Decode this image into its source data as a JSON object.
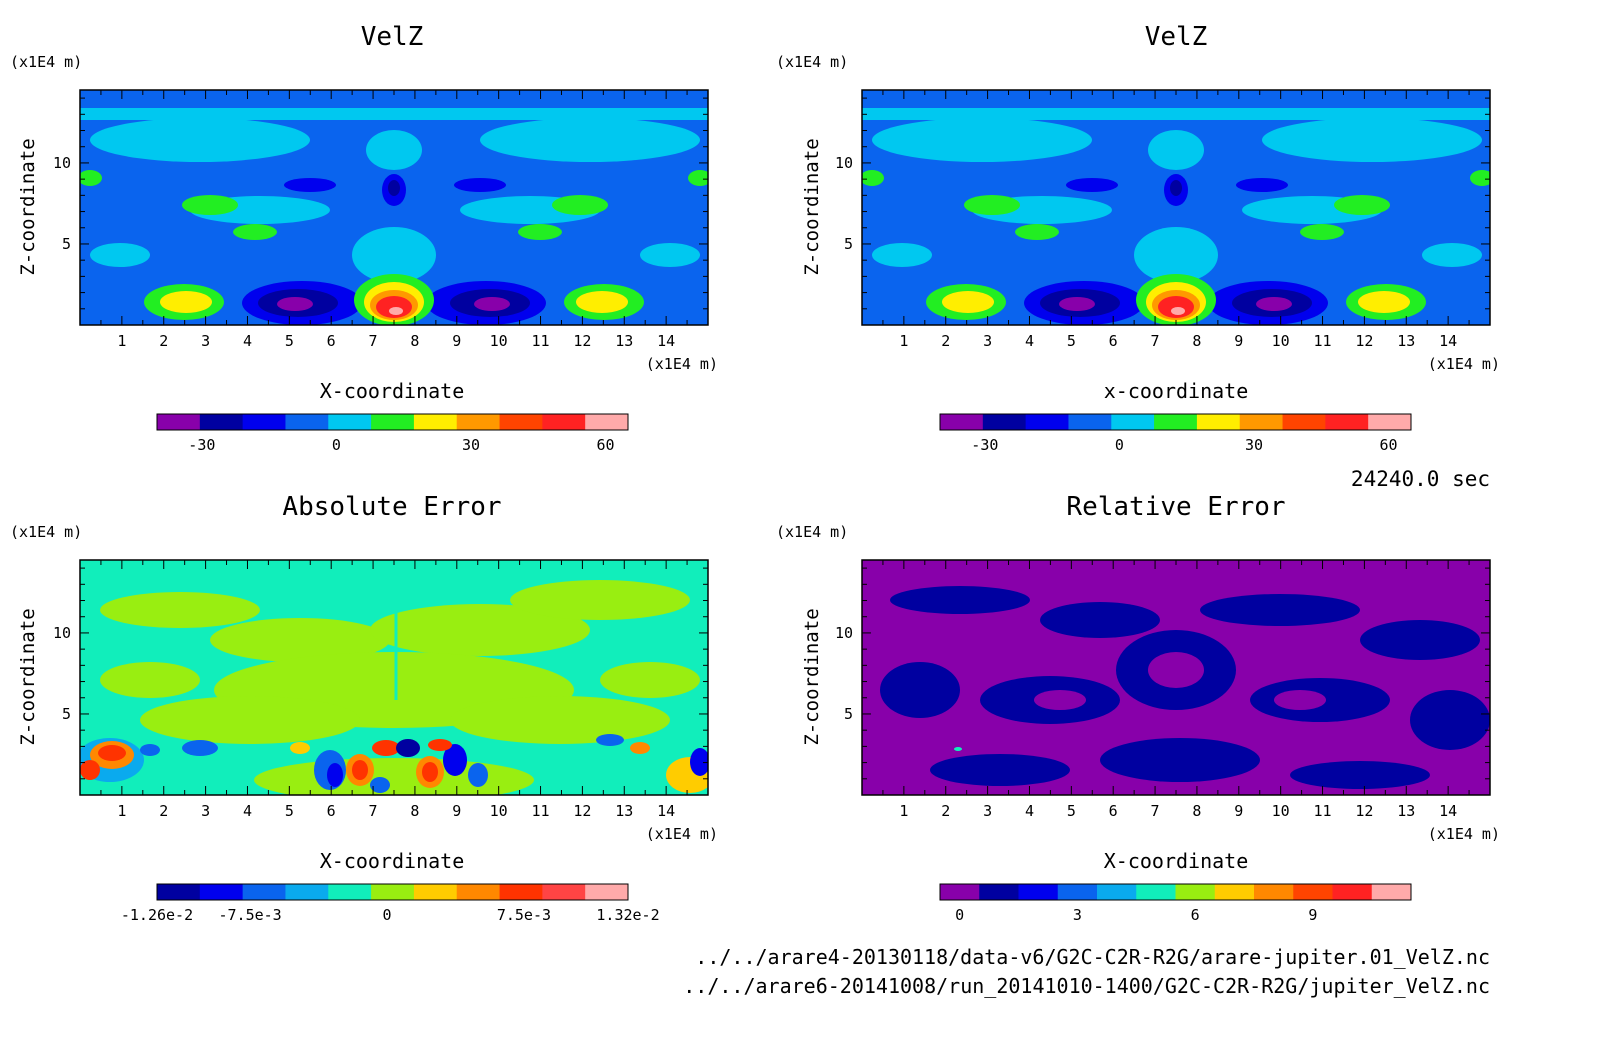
{
  "footer": {
    "time": "24240.0 sec",
    "file1": "../../arare4-20130118/data-v6/G2C-C2R-R2G/arare-jupiter.01_VelZ.nc",
    "file2": "../../arare6-20141008/run_20141010-1400/G2C-C2R-R2G/jupiter_VelZ.nc"
  },
  "chart_data": [
    {
      "id": "p1",
      "type": "heatmap",
      "title": "VelZ",
      "xlabel": "X-coordinate",
      "ylabel": "Z-coordinate",
      "x_unit": "(x1E4 m)",
      "y_unit": "(x1E4 m)",
      "xlim": [
        0,
        15
      ],
      "ylim": [
        0,
        14.5
      ],
      "xticks": [
        "1",
        "2",
        "3",
        "4",
        "5",
        "6",
        "7",
        "8",
        "9",
        "10",
        "11",
        "12",
        "13",
        "14"
      ],
      "yticks": [
        "5",
        "10"
      ],
      "colorbar": {
        "colors": [
          "#8800aa",
          "#0000a0",
          "#0000ee",
          "#0a64ee",
          "#00c8f0",
          "#22ee22",
          "#ffee00",
          "#ff9900",
          "#ff4400",
          "#ff2222",
          "#ffaaaa"
        ],
        "tick_labels": [
          "-30",
          "0",
          "30",
          "60"
        ],
        "tick_values": [
          -30,
          0,
          30,
          60
        ],
        "range": [
          -40,
          65
        ]
      }
    },
    {
      "id": "p2",
      "type": "heatmap",
      "title": "VelZ",
      "xlabel": "x-coordinate",
      "ylabel": "Z-coordinate",
      "x_unit": "(x1E4 m)",
      "y_unit": "(x1E4 m)",
      "xlim": [
        0,
        15
      ],
      "ylim": [
        0,
        14.5
      ],
      "xticks": [
        "1",
        "2",
        "3",
        "4",
        "5",
        "6",
        "7",
        "8",
        "9",
        "10",
        "11",
        "12",
        "13",
        "14"
      ],
      "yticks": [
        "5",
        "10"
      ],
      "colorbar": {
        "colors": [
          "#8800aa",
          "#0000a0",
          "#0000ee",
          "#0a64ee",
          "#00c8f0",
          "#22ee22",
          "#ffee00",
          "#ff9900",
          "#ff4400",
          "#ff2222",
          "#ffaaaa"
        ],
        "tick_labels": [
          "-30",
          "0",
          "30",
          "60"
        ],
        "tick_values": [
          -30,
          0,
          30,
          60
        ],
        "range": [
          -40,
          65
        ]
      }
    },
    {
      "id": "p3",
      "type": "heatmap",
      "title": "Absolute Error",
      "xlabel": "X-coordinate",
      "ylabel": "Z-coordinate",
      "x_unit": "(x1E4 m)",
      "y_unit": "(x1E4 m)",
      "xlim": [
        0,
        15
      ],
      "ylim": [
        0,
        14.5
      ],
      "xticks": [
        "1",
        "2",
        "3",
        "4",
        "5",
        "6",
        "7",
        "8",
        "9",
        "10",
        "11",
        "12",
        "13",
        "14"
      ],
      "yticks": [
        "5",
        "10"
      ],
      "colorbar": {
        "colors": [
          "#0000a0",
          "#0000ee",
          "#0a64ee",
          "#0aaaee",
          "#11eebb",
          "#99ee11",
          "#ffcc00",
          "#ff8800",
          "#ff3300",
          "#ff4444",
          "#ffaaaa"
        ],
        "tick_labels": [
          "-1.26e-2",
          "-7.5e-3",
          "0",
          "7.5e-3",
          "1.32e-2"
        ],
        "tick_values": [
          -0.0126,
          -0.0075,
          0,
          0.0075,
          0.0132
        ],
        "range": [
          -0.0126,
          0.0132
        ]
      }
    },
    {
      "id": "p4",
      "type": "heatmap",
      "title": "Relative Error",
      "xlabel": "X-coordinate",
      "ylabel": "Z-coordinate",
      "x_unit": "(x1E4 m)",
      "y_unit": "(x1E4 m)",
      "xlim": [
        0,
        15
      ],
      "ylim": [
        0,
        14.5
      ],
      "xticks": [
        "1",
        "2",
        "3",
        "4",
        "5",
        "6",
        "7",
        "8",
        "9",
        "10",
        "11",
        "12",
        "13",
        "14"
      ],
      "yticks": [
        "5",
        "10"
      ],
      "colorbar": {
        "colors": [
          "#8800aa",
          "#0000a0",
          "#0000ee",
          "#0a64ee",
          "#0aaaee",
          "#11eebb",
          "#99ee11",
          "#ffcc00",
          "#ff8800",
          "#ff4400",
          "#ff2222",
          "#ffaaaa"
        ],
        "tick_labels": [
          "0",
          "3",
          "6",
          "9"
        ],
        "tick_values": [
          0,
          3,
          6,
          9
        ],
        "range": [
          -0.5,
          11.5
        ]
      }
    }
  ]
}
